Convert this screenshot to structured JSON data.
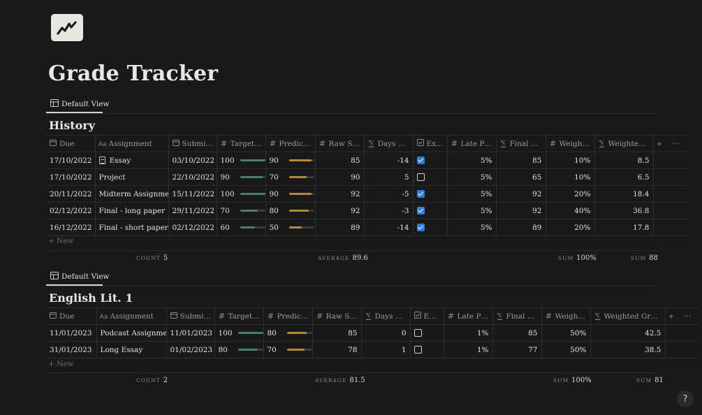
{
  "page": {
    "title": "Grade Tracker",
    "icon": "chart-line-icon"
  },
  "help_label": "?",
  "history": {
    "view_label": "Default View",
    "title": "History",
    "columns": [
      {
        "icon": "calendar-icon",
        "label": "Due"
      },
      {
        "icon": "text-icon",
        "label": "Assignment"
      },
      {
        "icon": "calendar-icon",
        "label": "Submitted"
      },
      {
        "icon": "number-icon",
        "label": "Target G..."
      },
      {
        "icon": "number-icon",
        "label": "Predicte..."
      },
      {
        "icon": "number-icon",
        "label": "Raw Score"
      },
      {
        "icon": "formula-icon",
        "label": "Days Late"
      },
      {
        "icon": "checkbox-icon",
        "label": "Exc..."
      },
      {
        "icon": "number-icon",
        "label": "Late Pen..."
      },
      {
        "icon": "formula-icon",
        "label": "Final Gr..."
      },
      {
        "icon": "number-icon",
        "label": "Weighting"
      },
      {
        "icon": "formula-icon",
        "label": "Weighted Gr..."
      }
    ],
    "rows": [
      {
        "due": "17/10/2022",
        "assignment": "Essay",
        "has_doc": true,
        "submitted": "03/10/2022",
        "target": "100",
        "target_pct": 1.0,
        "predicted": "90",
        "predicted_pct": 0.9,
        "raw": "85",
        "days_late": "-14",
        "excused": true,
        "late_pen": "5%",
        "final": "85",
        "weighting": "10%",
        "weighted": "8.5"
      },
      {
        "due": "17/10/2022",
        "assignment": "Project",
        "has_doc": false,
        "submitted": "22/10/2022",
        "target": "90",
        "target_pct": 0.9,
        "predicted": "70",
        "predicted_pct": 0.7,
        "raw": "90",
        "days_late": "5",
        "excused": false,
        "late_pen": "5%",
        "final": "65",
        "weighting": "10%",
        "weighted": "6.5"
      },
      {
        "due": "20/11/2022",
        "assignment": "Midterm Assignment",
        "has_doc": false,
        "submitted": "15/11/2022",
        "target": "100",
        "target_pct": 1.0,
        "predicted": "90",
        "predicted_pct": 0.9,
        "raw": "92",
        "days_late": "-5",
        "excused": true,
        "late_pen": "5%",
        "final": "92",
        "weighting": "20%",
        "weighted": "18.4"
      },
      {
        "due": "02/12/2022",
        "assignment": "Final - long paper",
        "has_doc": false,
        "submitted": "29/11/2022",
        "target": "70",
        "target_pct": 0.7,
        "predicted": "80",
        "predicted_pct": 0.8,
        "raw": "92",
        "days_late": "-3",
        "excused": true,
        "late_pen": "5%",
        "final": "92",
        "weighting": "40%",
        "weighted": "36.8"
      },
      {
        "due": "16/12/2022",
        "assignment": "Final - short paper",
        "has_doc": false,
        "submitted": "02/12/2022",
        "target": "60",
        "target_pct": 0.6,
        "predicted": "50",
        "predicted_pct": 0.5,
        "raw": "89",
        "days_late": "-14",
        "excused": true,
        "late_pen": "5%",
        "final": "89",
        "weighting": "20%",
        "weighted": "17.8"
      }
    ],
    "new_label": "New",
    "calc": {
      "count_label": "COUNT",
      "count_value": "5",
      "avg_label": "AVERAGE",
      "avg_value": "89.6",
      "sum1_label": "SUM",
      "sum1_value": "100%",
      "sum2_label": "SUM",
      "sum2_value": "88"
    }
  },
  "english": {
    "view_label": "Default View",
    "title": "English Lit. 1",
    "columns": [
      {
        "icon": "calendar-icon",
        "label": "Due"
      },
      {
        "icon": "text-icon",
        "label": "Assignment"
      },
      {
        "icon": "calendar-icon",
        "label": "Submitted"
      },
      {
        "icon": "number-icon",
        "label": "Target G..."
      },
      {
        "icon": "number-icon",
        "label": "Predicte..."
      },
      {
        "icon": "number-icon",
        "label": "Raw Score"
      },
      {
        "icon": "formula-icon",
        "label": "Days Late"
      },
      {
        "icon": "checkbox-icon",
        "label": "Exc..."
      },
      {
        "icon": "number-icon",
        "label": "Late Pen..."
      },
      {
        "icon": "formula-icon",
        "label": "Final Gr..."
      },
      {
        "icon": "number-icon",
        "label": "Weighting"
      },
      {
        "icon": "formula-icon",
        "label": "Weighted Grade"
      }
    ],
    "rows": [
      {
        "due": "11/01/2023",
        "assignment": "Podcast Assignment",
        "has_doc": false,
        "submitted": "11/01/2023",
        "target": "100",
        "target_pct": 1.0,
        "predicted": "80",
        "predicted_pct": 0.8,
        "raw": "85",
        "days_late": "0",
        "excused": false,
        "late_pen": "1%",
        "final": "85",
        "weighting": "50%",
        "weighted": "42.5"
      },
      {
        "due": "31/01/2023",
        "assignment": "Long Essay",
        "has_doc": false,
        "submitted": "01/02/2023",
        "target": "80",
        "target_pct": 0.8,
        "predicted": "70",
        "predicted_pct": 0.7,
        "raw": "78",
        "days_late": "1",
        "excused": false,
        "late_pen": "1%",
        "final": "77",
        "weighting": "50%",
        "weighted": "38.5"
      }
    ],
    "new_label": "New",
    "calc": {
      "count_label": "COUNT",
      "count_value": "2",
      "avg_label": "AVERAGE",
      "avg_value": "81.5",
      "sum1_label": "SUM",
      "sum1_value": "100%",
      "sum2_label": "SUM",
      "sum2_value": "81"
    }
  }
}
